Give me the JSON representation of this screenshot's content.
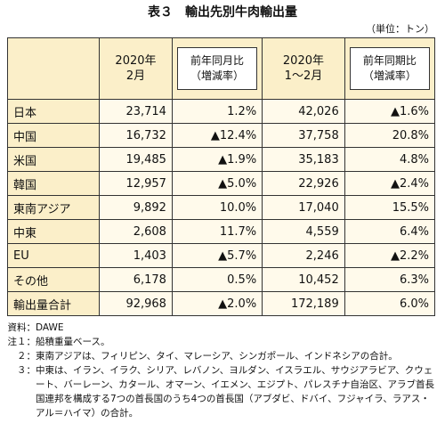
{
  "header": {
    "title": "表３　輸出先別牛肉輸出量",
    "unit": "（単位：トン）"
  },
  "table": {
    "columns": [
      [
        "2020年",
        "2月"
      ],
      [
        "前年同月比",
        "（増減率）"
      ],
      [
        "2020年",
        "1～2月"
      ],
      [
        "前年同期比",
        "（増減率）"
      ]
    ],
    "rows": [
      [
        "日本",
        "23,714",
        "1.2%",
        "42,026",
        "▲1.6%"
      ],
      [
        "中国",
        "16,732",
        "▲12.4%",
        "37,758",
        "20.8%"
      ],
      [
        "米国",
        "19,485",
        "▲1.9%",
        "35,183",
        "4.8%"
      ],
      [
        "韓国",
        "12,957",
        "▲5.0%",
        "22,926",
        "▲2.4%"
      ],
      [
        "東南アジア",
        "9,892",
        "10.0%",
        "17,040",
        "15.5%"
      ],
      [
        "中東",
        "2,608",
        "11.7%",
        "4,559",
        "6.4%"
      ],
      [
        "EU",
        "1,403",
        "▲5.7%",
        "2,246",
        "▲2.2%"
      ],
      [
        "その他",
        "6,178",
        "0.5%",
        "10,452",
        "6.3%"
      ],
      [
        "輸出量合計",
        "92,968",
        "▲2.0%",
        "172,189",
        "6.0%"
      ]
    ]
  },
  "notes": [
    [
      "資料：",
      "DAWE"
    ],
    [
      "注１：",
      "船積重量ベース。"
    ],
    [
      "２：",
      "東南アジアは、フィリピン、タイ、マレーシア、シンガポール、インドネシアの合計。"
    ],
    [
      "３：",
      "中東は、イラン、イラク、シリア、レバノン、ヨルダン、イスラエル、サウジアラビア、クウェート、バーレーン、カタール、オマーン、イエメン、エジプト、パレスチナ自治区、アラブ首長国連邦を構成する7つの首長国のうち4つの首長国（アブダビ、ドバイ、フジャイラ、ラアス・アル＝ハイマ）の合計。"
    ]
  ]
}
